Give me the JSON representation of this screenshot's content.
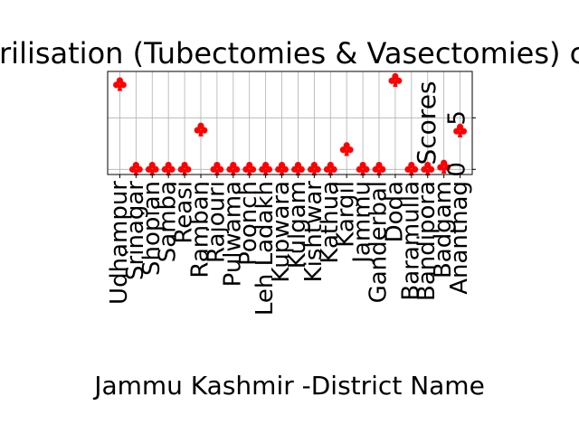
{
  "chart_data": {
    "type": "scatter",
    "title": "No. of Sterilisation (Tubectomies & Vasectomies) conducted",
    "xlabel": "Jammu Kashmir -District Name",
    "ylabel": "Scores",
    "categories": [
      "Udhampur",
      "Srinagar",
      "Shopian",
      "Samba",
      "Reasi",
      "Ramban",
      "Rajouri",
      "Pulwama",
      "Poonch",
      "Leh Ladakh",
      "Kupwara",
      "Kulgam",
      "Kishtwar",
      "Kathua",
      "Kargil",
      "Jammu",
      "Ganderbal",
      "Doda",
      "Baramulla",
      "Bandipora",
      "Badgam",
      "Anantnag"
    ],
    "series": [
      {
        "values": [
          8.3,
          0.1,
          0.1,
          0.1,
          0.1,
          3.9,
          0.1,
          0.1,
          0.1,
          0.1,
          0.1,
          0.1,
          0.1,
          0.1,
          2.0,
          0.1,
          0.1,
          8.7,
          0.1,
          0.1,
          0.3,
          3.8
        ],
        "color": "#ff0000",
        "marker": "club"
      }
    ],
    "yticks": [
      "0",
      "5"
    ],
    "ylim": [
      -0.5,
      9.5
    ],
    "grid": true
  }
}
